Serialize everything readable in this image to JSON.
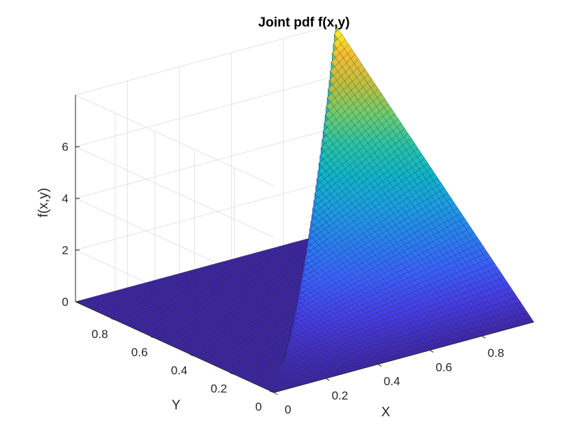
{
  "chart_data": {
    "type": "surface",
    "title": "Joint pdf f(x,y)",
    "xlabel": "X",
    "ylabel": "Y",
    "zlabel": "f(x,y)",
    "xlim": [
      0,
      1
    ],
    "ylim": [
      0,
      1
    ],
    "zlim": [
      0,
      8
    ],
    "x_ticks": [
      "0",
      "0.2",
      "0.4",
      "0.6",
      "0.8"
    ],
    "y_ticks": [
      "0",
      "0.2",
      "0.4",
      "0.6",
      "0.8"
    ],
    "z_ticks": [
      "0",
      "2",
      "4",
      "6"
    ],
    "surface": {
      "function": "f(x,y) = 8xy for 0 ≤ y ≤ x ≤ 1, else 0",
      "grid_resolution": 60,
      "peak": {
        "x": 1,
        "y": 1,
        "z": 8
      },
      "colormap": "parula"
    },
    "grid": true
  }
}
